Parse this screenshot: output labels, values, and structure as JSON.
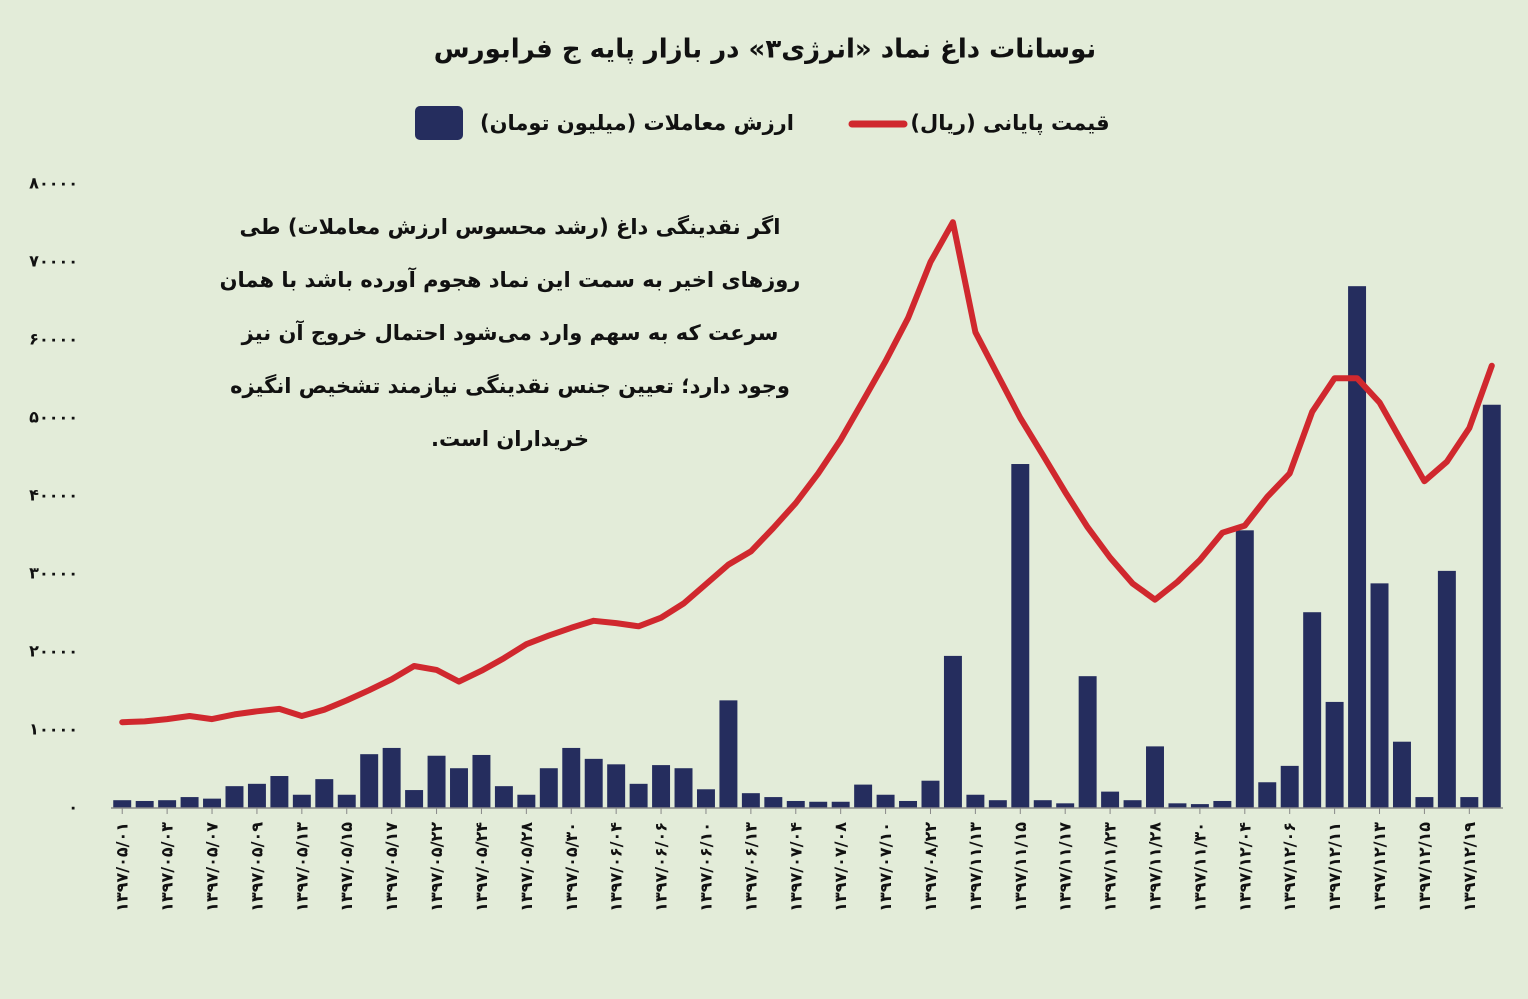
{
  "chart_data": {
    "type": "bar-line",
    "title": "نوسانات داغ نماد «انرژی۳» در بازار پایه ج فرابورس",
    "annotation": [
      "اگر نقدینگی داغ (رشد محسوس ارزش معاملات) طی",
      "روزهای اخیر به سمت این نماد هجوم آورده باشد با همان",
      "سرعت که به سهم وارد می‌شود احتمال خروج آن نیز",
      "وجود دارد؛ تعیین جنس نقدینگی نیازمند تشخیص انگیزه",
      "خریداران است."
    ],
    "categories": [
      "۱۳۹۷/۰۵/۰۱",
      null,
      "۱۳۹۷/۰۵/۰۳",
      null,
      "۱۳۹۷/۰۵/۰۷",
      null,
      "۱۳۹۷/۰۵/۰۹",
      null,
      "۱۳۹۷/۰۵/۱۳",
      null,
      "۱۳۹۷/۰۵/۱۵",
      null,
      "۱۳۹۷/۰۵/۱۷",
      null,
      "۱۳۹۷/۰۵/۲۲",
      null,
      "۱۳۹۷/۰۵/۲۴",
      null,
      "۱۳۹۷/۰۵/۲۸",
      null,
      "۱۳۹۷/۰۵/۳۰",
      null,
      "۱۳۹۷/۰۶/۰۴",
      null,
      "۱۳۹۷/۰۶/۰۶",
      null,
      "۱۳۹۷/۰۶/۱۰",
      null,
      "۱۳۹۷/۰۶/۱۳",
      null,
      "۱۳۹۷/۰۷/۰۴",
      null,
      "۱۳۹۷/۰۷/۰۸",
      null,
      "۱۳۹۷/۰۷/۱۰",
      null,
      "۱۳۹۷/۰۸/۲۲",
      null,
      "۱۳۹۷/۱۱/۱۳",
      null,
      "۱۳۹۷/۱۱/۱۵",
      null,
      "۱۳۹۷/۱۱/۱۷",
      null,
      "۱۳۹۷/۱۱/۲۳",
      null,
      "۱۳۹۷/۱۱/۲۸",
      null,
      "۱۳۹۷/۱۱/۳۰",
      null,
      "۱۳۹۷/۱۲/۰۴",
      null,
      "۱۳۹۷/۱۲/۰۶",
      null,
      "۱۳۹۷/۱۲/۱۱",
      null,
      "۱۳۹۷/۱۲/۱۳",
      null,
      "۱۳۹۷/۱۲/۱۵",
      null,
      "۱۳۹۷/۱۲/۱۹",
      null
    ],
    "series": [
      {
        "name": "قیمت پایانی (ریال)",
        "type": "line",
        "color": "#d0282e",
        "values": [
          11000,
          11100,
          11400,
          11800,
          11400,
          12000,
          12400,
          12700,
          11800,
          12600,
          13800,
          15100,
          16500,
          18200,
          17700,
          16200,
          17600,
          19200,
          21000,
          22100,
          23100,
          24000,
          23700,
          23300,
          24400,
          26200,
          28700,
          31200,
          32900,
          35900,
          39100,
          42900,
          47200,
          52200,
          57300,
          62800,
          70000,
          75100,
          61000,
          55500,
          50000,
          45300,
          40500,
          36000,
          32100,
          28800,
          26700,
          29000,
          31800,
          35300,
          36200,
          39900,
          42900,
          50800,
          55100,
          55100,
          52000,
          46900,
          41900,
          44400,
          48700,
          56700
        ]
      },
      {
        "name": "ارزش معاملات (میلیون تومان)",
        "type": "bar",
        "color": "#252d5e",
        "values": [
          1000,
          900,
          1000,
          1400,
          1200,
          2800,
          3100,
          4100,
          1700,
          3700,
          1700,
          6900,
          7700,
          2300,
          6700,
          5100,
          6800,
          2800,
          1700,
          5100,
          7700,
          6300,
          5600,
          3100,
          5500,
          5100,
          2400,
          13800,
          1900,
          1400,
          900,
          800,
          800,
          3000,
          1700,
          900,
          3500,
          19500,
          1700,
          1000,
          44100,
          1000,
          600,
          16900,
          2100,
          1000,
          7900,
          600,
          500,
          900,
          35600,
          3300,
          5400,
          25100,
          13600,
          66900,
          28800,
          8500,
          1400,
          30400,
          1400,
          51700
        ]
      }
    ],
    "ylim": [
      0,
      80000
    ],
    "yticks": [
      {
        "value": 0,
        "label": "۰"
      },
      {
        "value": 10000,
        "label": "۱۰۰۰۰"
      },
      {
        "value": 20000,
        "label": "۲۰۰۰۰"
      },
      {
        "value": 30000,
        "label": "۳۰۰۰۰"
      },
      {
        "value": 40000,
        "label": "۴۰۰۰۰"
      },
      {
        "value": 50000,
        "label": "۵۰۰۰۰"
      },
      {
        "value": 60000,
        "label": "۶۰۰۰۰"
      },
      {
        "value": 70000,
        "label": "۷۰۰۰۰"
      },
      {
        "value": 80000,
        "label": "۸۰۰۰۰"
      }
    ],
    "grid": false
  }
}
